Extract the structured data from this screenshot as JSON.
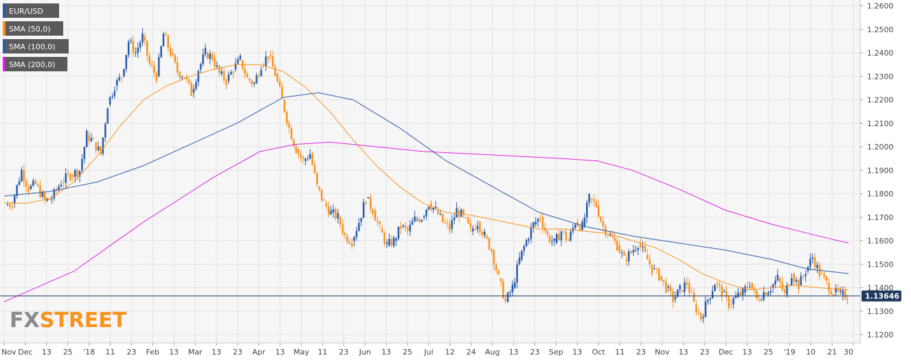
{
  "chart_data": {
    "type": "candlestick",
    "legend": [
      {
        "label": "EUR/USD",
        "color": "#2a5caa"
      },
      {
        "label": "SMA (50,0)",
        "color": "#f7931e"
      },
      {
        "label": "SMA (100,0)",
        "color": "#2a5caa"
      },
      {
        "label": "SMA (200,0)",
        "color": "#e11ee1"
      }
    ],
    "y_axis": {
      "ticks": [
        "1.2600",
        "1.2500",
        "1.2400",
        "1.2300",
        "1.2200",
        "1.2100",
        "1.2000",
        "1.1900",
        "1.1800",
        "1.1700",
        "1.1600",
        "1.1500",
        "1.1400",
        "1.1300",
        "1.1200"
      ],
      "range": [
        1.1165,
        1.2625
      ]
    },
    "x_axis": {
      "ticks": [
        "Nov",
        "Dec",
        "13",
        "25",
        "'18",
        "11",
        "23",
        "Feb",
        "13",
        "Mar",
        "13",
        "23",
        "Apr",
        "13",
        "May",
        "11",
        "23",
        "Jun",
        "13",
        "25",
        "Jul",
        "12",
        "24",
        "Aug",
        "13",
        "23",
        "Sep",
        "13",
        "Oct",
        "11",
        "23",
        "Nov",
        "13",
        "23",
        "Dec",
        "13",
        "25",
        "'19",
        "10",
        "21",
        "30"
      ],
      "range": [
        0,
        365
      ]
    },
    "current_price": {
      "label": "1.13646",
      "value": 1.13646
    },
    "colors": {
      "up": "#2a5caa",
      "down": "#f7931e",
      "sma50": "#f7931e",
      "sma100": "#2a5caa",
      "sma200": "#e11ee1"
    },
    "series": [
      {
        "name": "EUR/USD",
        "kind": "candles",
        "points": [
          [
            1,
            1.175
          ],
          [
            4,
            1.176
          ],
          [
            8,
            1.19
          ],
          [
            11,
            1.182
          ],
          [
            14,
            1.184
          ],
          [
            18,
            1.177
          ],
          [
            21,
            1.178
          ],
          [
            25,
            1.185
          ],
          [
            29,
            1.188
          ],
          [
            33,
            1.19
          ],
          [
            36,
            1.205
          ],
          [
            39,
            1.202
          ],
          [
            42,
            1.197
          ],
          [
            45,
            1.218
          ],
          [
            48,
            1.226
          ],
          [
            51,
            1.23
          ],
          [
            54,
            1.245
          ],
          [
            57,
            1.24
          ],
          [
            60,
            1.247
          ],
          [
            63,
            1.235
          ],
          [
            66,
            1.23
          ],
          [
            69,
            1.248
          ],
          [
            72,
            1.24
          ],
          [
            75,
            1.232
          ],
          [
            78,
            1.23
          ],
          [
            81,
            1.223
          ],
          [
            84,
            1.233
          ],
          [
            87,
            1.24
          ],
          [
            90,
            1.238
          ],
          [
            93,
            1.231
          ],
          [
            96,
            1.228
          ],
          [
            99,
            1.233
          ],
          [
            102,
            1.237
          ],
          [
            105,
            1.229
          ],
          [
            108,
            1.227
          ],
          [
            111,
            1.235
          ],
          [
            114,
            1.239
          ],
          [
            117,
            1.231
          ],
          [
            120,
            1.22
          ],
          [
            123,
            1.208
          ],
          [
            126,
            1.199
          ],
          [
            129,
            1.194
          ],
          [
            132,
            1.197
          ],
          [
            135,
            1.183
          ],
          [
            138,
            1.176
          ],
          [
            141,
            1.172
          ],
          [
            144,
            1.17
          ],
          [
            147,
            1.162
          ],
          [
            150,
            1.16
          ],
          [
            153,
            1.168
          ],
          [
            156,
            1.178
          ],
          [
            159,
            1.173
          ],
          [
            162,
            1.165
          ],
          [
            165,
            1.158
          ],
          [
            168,
            1.16
          ],
          [
            171,
            1.166
          ],
          [
            174,
            1.164
          ],
          [
            177,
            1.169
          ],
          [
            180,
            1.17
          ],
          [
            183,
            1.176
          ],
          [
            186,
            1.173
          ],
          [
            189,
            1.168
          ],
          [
            192,
            1.165
          ],
          [
            195,
            1.173
          ],
          [
            198,
            1.17
          ],
          [
            201,
            1.164
          ],
          [
            204,
            1.168
          ],
          [
            207,
            1.162
          ],
          [
            210,
            1.156
          ],
          [
            213,
            1.144
          ],
          [
            216,
            1.134
          ],
          [
            219,
            1.14
          ],
          [
            222,
            1.152
          ],
          [
            225,
            1.16
          ],
          [
            228,
            1.167
          ],
          [
            231,
            1.17
          ],
          [
            234,
            1.162
          ],
          [
            237,
            1.159
          ],
          [
            240,
            1.164
          ],
          [
            243,
            1.16
          ],
          [
            246,
            1.168
          ],
          [
            249,
            1.166
          ],
          [
            252,
            1.178
          ],
          [
            255,
            1.175
          ],
          [
            258,
            1.166
          ],
          [
            261,
            1.162
          ],
          [
            264,
            1.158
          ],
          [
            267,
            1.152
          ],
          [
            270,
            1.155
          ],
          [
            273,
            1.159
          ],
          [
            276,
            1.154
          ],
          [
            279,
            1.148
          ],
          [
            282,
            1.145
          ],
          [
            285,
            1.14
          ],
          [
            288,
            1.135
          ],
          [
            291,
            1.139
          ],
          [
            294,
            1.142
          ],
          [
            297,
            1.133
          ],
          [
            300,
            1.127
          ],
          [
            303,
            1.135
          ],
          [
            306,
            1.142
          ],
          [
            309,
            1.138
          ],
          [
            312,
            1.133
          ],
          [
            315,
            1.136
          ],
          [
            318,
            1.138
          ],
          [
            321,
            1.142
          ],
          [
            324,
            1.135
          ],
          [
            327,
            1.138
          ],
          [
            330,
            1.14
          ],
          [
            333,
            1.144
          ],
          [
            336,
            1.137
          ],
          [
            339,
            1.146
          ],
          [
            342,
            1.141
          ],
          [
            345,
            1.147
          ],
          [
            348,
            1.153
          ],
          [
            351,
            1.146
          ],
          [
            354,
            1.142
          ],
          [
            357,
            1.138
          ],
          [
            360,
            1.137
          ],
          [
            363,
            1.1365
          ]
        ]
      },
      {
        "name": "SMA (50,0)",
        "kind": "line",
        "points": [
          [
            0,
            1.176
          ],
          [
            10,
            1.176
          ],
          [
            20,
            1.178
          ],
          [
            30,
            1.185
          ],
          [
            40,
            1.196
          ],
          [
            50,
            1.209
          ],
          [
            60,
            1.22
          ],
          [
            70,
            1.226
          ],
          [
            80,
            1.23
          ],
          [
            90,
            1.233
          ],
          [
            100,
            1.235
          ],
          [
            110,
            1.235
          ],
          [
            120,
            1.232
          ],
          [
            130,
            1.225
          ],
          [
            140,
            1.215
          ],
          [
            150,
            1.203
          ],
          [
            160,
            1.192
          ],
          [
            170,
            1.183
          ],
          [
            180,
            1.176
          ],
          [
            190,
            1.172
          ],
          [
            200,
            1.171
          ],
          [
            210,
            1.169
          ],
          [
            220,
            1.167
          ],
          [
            230,
            1.165
          ],
          [
            240,
            1.165
          ],
          [
            250,
            1.164
          ],
          [
            260,
            1.163
          ],
          [
            270,
            1.16
          ],
          [
            280,
            1.157
          ],
          [
            290,
            1.152
          ],
          [
            300,
            1.146
          ],
          [
            310,
            1.142
          ],
          [
            320,
            1.139
          ],
          [
            330,
            1.14
          ],
          [
            340,
            1.141
          ],
          [
            350,
            1.14
          ],
          [
            363,
            1.139
          ]
        ]
      },
      {
        "name": "SMA (100,0)",
        "kind": "line",
        "points": [
          [
            0,
            1.179
          ],
          [
            20,
            1.181
          ],
          [
            40,
            1.185
          ],
          [
            60,
            1.192
          ],
          [
            80,
            1.201
          ],
          [
            100,
            1.21
          ],
          [
            120,
            1.221
          ],
          [
            135,
            1.223
          ],
          [
            150,
            1.22
          ],
          [
            170,
            1.208
          ],
          [
            190,
            1.194
          ],
          [
            210,
            1.183
          ],
          [
            230,
            1.172
          ],
          [
            250,
            1.166
          ],
          [
            270,
            1.162
          ],
          [
            290,
            1.159
          ],
          [
            310,
            1.156
          ],
          [
            330,
            1.152
          ],
          [
            345,
            1.148
          ],
          [
            363,
            1.146
          ]
        ]
      },
      {
        "name": "SMA (200,0)",
        "kind": "line",
        "points": [
          [
            0,
            1.134
          ],
          [
            30,
            1.147
          ],
          [
            60,
            1.168
          ],
          [
            90,
            1.187
          ],
          [
            110,
            1.198
          ],
          [
            125,
            1.201
          ],
          [
            140,
            1.202
          ],
          [
            160,
            1.2
          ],
          [
            180,
            1.198
          ],
          [
            200,
            1.197
          ],
          [
            220,
            1.196
          ],
          [
            240,
            1.195
          ],
          [
            255,
            1.194
          ],
          [
            270,
            1.19
          ],
          [
            290,
            1.182
          ],
          [
            310,
            1.173
          ],
          [
            330,
            1.167
          ],
          [
            350,
            1.162
          ],
          [
            363,
            1.159
          ]
        ]
      }
    ]
  },
  "watermark": {
    "text_a": "FX",
    "text_b": "STREET",
    "color_a": "#8a8a8a",
    "color_b": "#f7931e"
  }
}
